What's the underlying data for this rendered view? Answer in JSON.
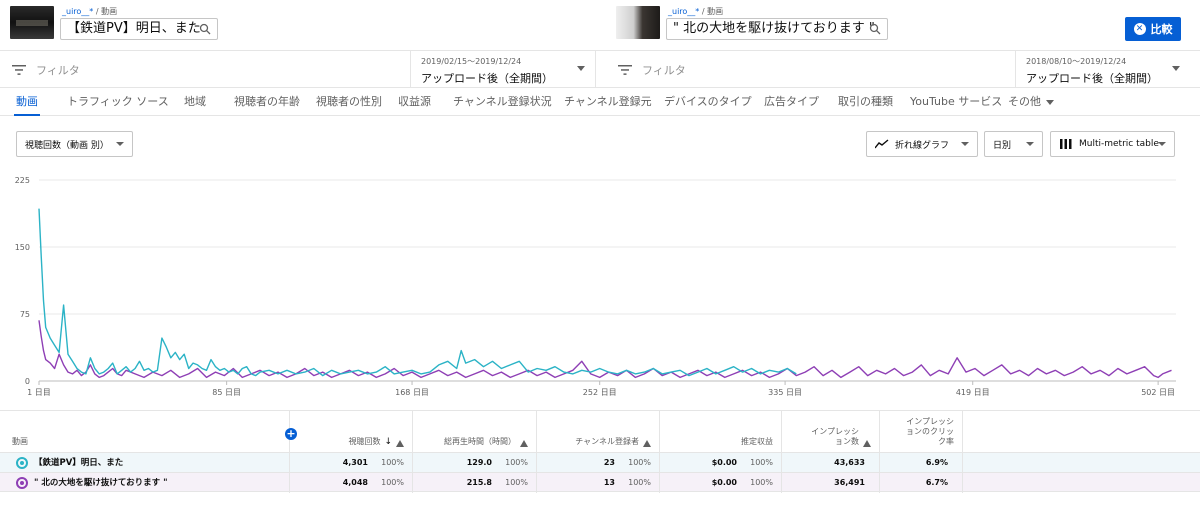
{
  "compare": {
    "left": {
      "channel": "_uiro__*",
      "section": "動画",
      "title": "【鉄道PV】明日、また",
      "date_range": "2019/02/15〜2019/12/24",
      "period": "アップロード後（全期間）"
    },
    "right": {
      "channel": "_uiro__*",
      "section": "動画",
      "title": "\" 北の大地を駆け抜けております \"",
      "date_range": "2018/08/10〜2019/12/24",
      "period": "アップロード後（全期間）"
    },
    "compare_button_label": "比較",
    "filter_placeholder": "フィルタ"
  },
  "tabs": [
    {
      "label": "動画",
      "active": true
    },
    {
      "label": "トラフィック ソース"
    },
    {
      "label": "地域"
    },
    {
      "label": "視聴者の年齢"
    },
    {
      "label": "視聴者の性別"
    },
    {
      "label": "収益源"
    },
    {
      "label": "チャンネル登録状況"
    },
    {
      "label": "チャンネル登録元"
    },
    {
      "label": "デバイスのタイプ"
    },
    {
      "label": "広告タイプ"
    },
    {
      "label": "取引の種類"
    },
    {
      "label": "YouTube サービス"
    },
    {
      "label": "その他"
    }
  ],
  "controls": {
    "metric_select": "視聴回数（動画 別）",
    "chart_type": "折れ線グラフ",
    "granularity": "日別",
    "table_mode": "Multi-metric table"
  },
  "chart_data": {
    "type": "line",
    "y_ticks": [
      "225",
      "150",
      "75",
      "0"
    ],
    "ylim": [
      0,
      225
    ],
    "x_ticks": [
      "1 日目",
      "85 日目",
      "168 日目",
      "252 日目",
      "335 日目",
      "419 日目",
      "502 日目"
    ],
    "x_tick_values": [
      1,
      85,
      168,
      252,
      335,
      419,
      502
    ],
    "xlim": [
      1,
      510
    ],
    "series": [
      {
        "name": "【鉄道PV】明日、また",
        "color": "#2bb3c6",
        "points": [
          [
            1,
            193
          ],
          [
            2,
            140
          ],
          [
            3,
            90
          ],
          [
            4,
            60
          ],
          [
            6,
            48
          ],
          [
            8,
            40
          ],
          [
            10,
            32
          ],
          [
            12,
            85
          ],
          [
            14,
            30
          ],
          [
            16,
            22
          ],
          [
            18,
            14
          ],
          [
            20,
            10
          ],
          [
            22,
            8
          ],
          [
            24,
            26
          ],
          [
            26,
            14
          ],
          [
            28,
            8
          ],
          [
            30,
            10
          ],
          [
            32,
            14
          ],
          [
            34,
            20
          ],
          [
            36,
            8
          ],
          [
            38,
            12
          ],
          [
            40,
            16
          ],
          [
            42,
            10
          ],
          [
            44,
            14
          ],
          [
            46,
            22
          ],
          [
            48,
            12
          ],
          [
            50,
            14
          ],
          [
            52,
            10
          ],
          [
            54,
            12
          ],
          [
            56,
            48
          ],
          [
            58,
            38
          ],
          [
            60,
            26
          ],
          [
            62,
            32
          ],
          [
            64,
            24
          ],
          [
            66,
            30
          ],
          [
            68,
            14
          ],
          [
            70,
            20
          ],
          [
            72,
            18
          ],
          [
            74,
            14
          ],
          [
            76,
            12
          ],
          [
            78,
            24
          ],
          [
            80,
            16
          ],
          [
            82,
            12
          ],
          [
            84,
            14
          ],
          [
            86,
            10
          ],
          [
            88,
            12
          ],
          [
            90,
            8
          ],
          [
            92,
            14
          ],
          [
            94,
            16
          ],
          [
            96,
            8
          ],
          [
            98,
            6
          ],
          [
            100,
            10
          ],
          [
            104,
            12
          ],
          [
            108,
            8
          ],
          [
            112,
            12
          ],
          [
            116,
            8
          ],
          [
            120,
            10
          ],
          [
            124,
            14
          ],
          [
            128,
            6
          ],
          [
            132,
            12
          ],
          [
            136,
            8
          ],
          [
            140,
            10
          ],
          [
            144,
            12
          ],
          [
            148,
            8
          ],
          [
            152,
            10
          ],
          [
            156,
            16
          ],
          [
            160,
            8
          ],
          [
            164,
            10
          ],
          [
            168,
            12
          ],
          [
            172,
            8
          ],
          [
            176,
            10
          ],
          [
            180,
            18
          ],
          [
            184,
            22
          ],
          [
            188,
            14
          ],
          [
            190,
            34
          ],
          [
            192,
            20
          ],
          [
            196,
            24
          ],
          [
            200,
            16
          ],
          [
            204,
            22
          ],
          [
            208,
            14
          ],
          [
            212,
            18
          ],
          [
            216,
            22
          ],
          [
            220,
            10
          ],
          [
            224,
            14
          ],
          [
            228,
            12
          ],
          [
            232,
            16
          ],
          [
            236,
            10
          ],
          [
            240,
            8
          ],
          [
            244,
            12
          ],
          [
            248,
            10
          ],
          [
            252,
            14
          ],
          [
            256,
            10
          ],
          [
            260,
            8
          ],
          [
            264,
            12
          ],
          [
            268,
            8
          ],
          [
            272,
            10
          ],
          [
            276,
            14
          ],
          [
            280,
            8
          ],
          [
            284,
            10
          ],
          [
            288,
            12
          ],
          [
            292,
            6
          ],
          [
            296,
            10
          ],
          [
            300,
            14
          ],
          [
            304,
            8
          ],
          [
            308,
            12
          ],
          [
            312,
            16
          ],
          [
            316,
            10
          ],
          [
            320,
            14
          ],
          [
            324,
            8
          ],
          [
            328,
            12
          ],
          [
            332,
            10
          ],
          [
            336,
            14
          ],
          [
            340,
            8
          ]
        ]
      },
      {
        "name": "\" 北の大地を駆け抜けております \"",
        "color": "#8e3fb5",
        "points": [
          [
            1,
            68
          ],
          [
            2,
            50
          ],
          [
            3,
            34
          ],
          [
            4,
            24
          ],
          [
            6,
            20
          ],
          [
            8,
            14
          ],
          [
            10,
            30
          ],
          [
            12,
            18
          ],
          [
            14,
            10
          ],
          [
            16,
            8
          ],
          [
            18,
            12
          ],
          [
            20,
            6
          ],
          [
            22,
            10
          ],
          [
            24,
            18
          ],
          [
            26,
            8
          ],
          [
            28,
            4
          ],
          [
            30,
            6
          ],
          [
            32,
            10
          ],
          [
            34,
            14
          ],
          [
            36,
            8
          ],
          [
            38,
            6
          ],
          [
            40,
            12
          ],
          [
            44,
            8
          ],
          [
            48,
            4
          ],
          [
            52,
            10
          ],
          [
            56,
            6
          ],
          [
            60,
            12
          ],
          [
            64,
            4
          ],
          [
            68,
            8
          ],
          [
            72,
            14
          ],
          [
            76,
            4
          ],
          [
            80,
            10
          ],
          [
            84,
            6
          ],
          [
            88,
            14
          ],
          [
            92,
            4
          ],
          [
            96,
            8
          ],
          [
            100,
            12
          ],
          [
            104,
            6
          ],
          [
            108,
            10
          ],
          [
            112,
            4
          ],
          [
            116,
            8
          ],
          [
            120,
            14
          ],
          [
            124,
            6
          ],
          [
            128,
            10
          ],
          [
            132,
            4
          ],
          [
            136,
            8
          ],
          [
            140,
            12
          ],
          [
            144,
            6
          ],
          [
            148,
            10
          ],
          [
            152,
            4
          ],
          [
            156,
            8
          ],
          [
            160,
            14
          ],
          [
            164,
            6
          ],
          [
            168,
            10
          ],
          [
            172,
            4
          ],
          [
            176,
            8
          ],
          [
            180,
            12
          ],
          [
            184,
            6
          ],
          [
            188,
            10
          ],
          [
            192,
            4
          ],
          [
            196,
            8
          ],
          [
            200,
            12
          ],
          [
            204,
            6
          ],
          [
            208,
            10
          ],
          [
            212,
            4
          ],
          [
            216,
            8
          ],
          [
            220,
            12
          ],
          [
            224,
            6
          ],
          [
            228,
            10
          ],
          [
            232,
            4
          ],
          [
            236,
            8
          ],
          [
            240,
            12
          ],
          [
            244,
            22
          ],
          [
            248,
            8
          ],
          [
            252,
            4
          ],
          [
            256,
            10
          ],
          [
            260,
            6
          ],
          [
            264,
            12
          ],
          [
            268,
            4
          ],
          [
            272,
            8
          ],
          [
            276,
            14
          ],
          [
            280,
            6
          ],
          [
            284,
            10
          ],
          [
            288,
            4
          ],
          [
            292,
            8
          ],
          [
            296,
            12
          ],
          [
            300,
            6
          ],
          [
            304,
            10
          ],
          [
            308,
            4
          ],
          [
            312,
            8
          ],
          [
            316,
            12
          ],
          [
            320,
            6
          ],
          [
            324,
            10
          ],
          [
            328,
            4
          ],
          [
            332,
            8
          ],
          [
            336,
            14
          ],
          [
            340,
            6
          ],
          [
            344,
            10
          ],
          [
            348,
            16
          ],
          [
            352,
            6
          ],
          [
            356,
            12
          ],
          [
            360,
            4
          ],
          [
            364,
            10
          ],
          [
            368,
            16
          ],
          [
            372,
            6
          ],
          [
            376,
            12
          ],
          [
            380,
            8
          ],
          [
            384,
            14
          ],
          [
            388,
            6
          ],
          [
            392,
            10
          ],
          [
            396,
            18
          ],
          [
            400,
            6
          ],
          [
            404,
            12
          ],
          [
            408,
            8
          ],
          [
            412,
            26
          ],
          [
            416,
            10
          ],
          [
            420,
            14
          ],
          [
            424,
            6
          ],
          [
            428,
            12
          ],
          [
            432,
            18
          ],
          [
            436,
            8
          ],
          [
            440,
            12
          ],
          [
            444,
            6
          ],
          [
            448,
            14
          ],
          [
            452,
            8
          ],
          [
            456,
            12
          ],
          [
            460,
            6
          ],
          [
            464,
            10
          ],
          [
            468,
            16
          ],
          [
            472,
            8
          ],
          [
            476,
            12
          ],
          [
            480,
            6
          ],
          [
            484,
            14
          ],
          [
            488,
            8
          ],
          [
            492,
            12
          ],
          [
            496,
            16
          ],
          [
            500,
            6
          ],
          [
            502,
            4
          ],
          [
            504,
            8
          ],
          [
            508,
            12
          ]
        ]
      }
    ]
  },
  "table": {
    "columns": [
      {
        "label": "動画"
      },
      {
        "label": "視聴回数",
        "sorted": true,
        "warn": true
      },
      {
        "label": "総再生時間（時間）",
        "warn": true
      },
      {
        "label": "チャンネル登録者",
        "warn": true
      },
      {
        "label": "推定収益"
      },
      {
        "label_line1": "インプレッシ",
        "label_line2": "ョン数",
        "warn": true
      },
      {
        "label_line1": "インプレッシ",
        "label_line2": "ョンのクリッ",
        "label_line3": "ク率"
      }
    ],
    "rows": [
      {
        "name": "【鉄道PV】明日、また",
        "color": "#2bb3c6",
        "views": "4,301",
        "views_pct": "100%",
        "watch": "129.0",
        "watch_pct": "100%",
        "subs": "23",
        "subs_pct": "100%",
        "revenue": "$0.00",
        "revenue_pct": "100%",
        "impressions": "43,633",
        "ctr": "6.9%"
      },
      {
        "name": "\" 北の大地を駆け抜けております \"",
        "color": "#8e3fb5",
        "views": "4,048",
        "views_pct": "100%",
        "watch": "215.8",
        "watch_pct": "100%",
        "subs": "13",
        "subs_pct": "100%",
        "revenue": "$0.00",
        "revenue_pct": "100%",
        "impressions": "36,491",
        "ctr": "6.7%"
      }
    ]
  }
}
